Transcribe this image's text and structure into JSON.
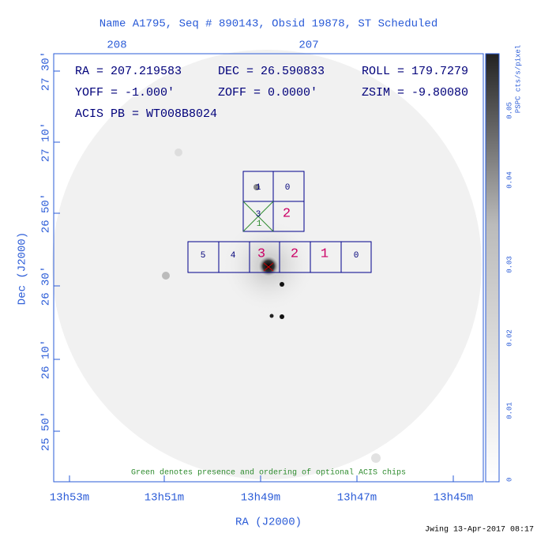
{
  "title": "Name A1795, Seq # 890143, Obsid 19878, ST Scheduled",
  "top_axis": {
    "labels": [
      "208",
      "207"
    ]
  },
  "left_axis": {
    "title": "Dec (J2000)",
    "labels": [
      "27 30'",
      "27 10'",
      "26 50'",
      "26 30'",
      "26 10'",
      "25 50'"
    ]
  },
  "bottom_axis": {
    "title": "RA (J2000)",
    "labels": [
      "13h53m",
      "13h51m",
      "13h49m",
      "13h47m",
      "13h45m"
    ]
  },
  "info": {
    "ra": "RA = 207.219583",
    "dec": "DEC = 26.590833",
    "roll": "ROLL = 179.7279",
    "yoff": "YOFF =  -1.000'",
    "zoff": "ZOFF =  0.0000'",
    "zsim": "ZSIM = -9.80080",
    "acis_pb": "ACIS PB = WT008B8024"
  },
  "acis_i": {
    "chips": [
      "1",
      "0",
      "3",
      "2"
    ],
    "optional": "1"
  },
  "acis_s": {
    "chips": [
      "5",
      "4",
      "3",
      "2",
      "1",
      "0"
    ]
  },
  "note": "Green denotes presence and ordering of optional ACIS chips",
  "colorbar": {
    "title": "PSPC cts/s/pixel",
    "labels": [
      "0",
      "0.01",
      "0.02",
      "0.03",
      "0.04",
      "0.05"
    ]
  },
  "footer": "Jwing 13-Apr-2017 08:17"
}
